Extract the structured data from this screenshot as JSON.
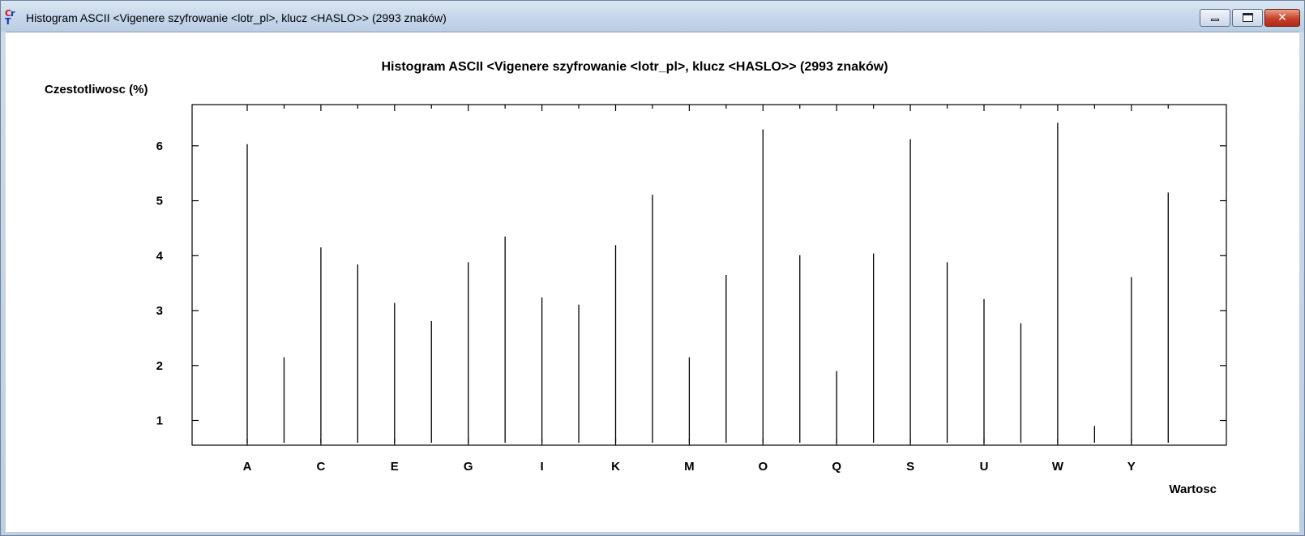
{
  "window": {
    "title": "Histogram ASCII <Vigenere szyfrowanie <lotr_pl>, klucz <HASLO>> (2993 znaków)",
    "icon": "cryptool-icon",
    "controls": {
      "minimize": "minimize-icon",
      "maximize": "maximize-icon",
      "close": "✕"
    }
  },
  "chart_data": {
    "type": "bar",
    "title": "Histogram ASCII <Vigenere szyfrowanie <lotr_pl>, klucz <HASLO>> (2993 znaków)",
    "ylabel": "Czestotliwosc (%)",
    "xlabel": "Wartosc",
    "categories": [
      "A",
      "B",
      "C",
      "D",
      "E",
      "F",
      "G",
      "H",
      "I",
      "J",
      "K",
      "L",
      "M",
      "N",
      "O",
      "P",
      "Q",
      "R",
      "S",
      "T",
      "U",
      "V",
      "W",
      "X",
      "Y",
      "Z"
    ],
    "tick_labels": [
      "A",
      "C",
      "E",
      "G",
      "I",
      "K",
      "M",
      "O",
      "Q",
      "S",
      "U",
      "W",
      "Y"
    ],
    "values": [
      6.03,
      2.15,
      4.15,
      3.84,
      3.14,
      2.81,
      3.88,
      4.35,
      3.24,
      3.11,
      4.19,
      5.11,
      2.15,
      3.65,
      6.3,
      4.01,
      1.9,
      4.04,
      6.12,
      3.88,
      3.21,
      2.77,
      6.42,
      0.9,
      3.61,
      5.15
    ],
    "yticks": [
      1,
      2,
      3,
      4,
      5,
      6
    ],
    "ylim": [
      0.55,
      6.75
    ],
    "grid": false,
    "legend": "none",
    "bar_color": "#000000"
  }
}
